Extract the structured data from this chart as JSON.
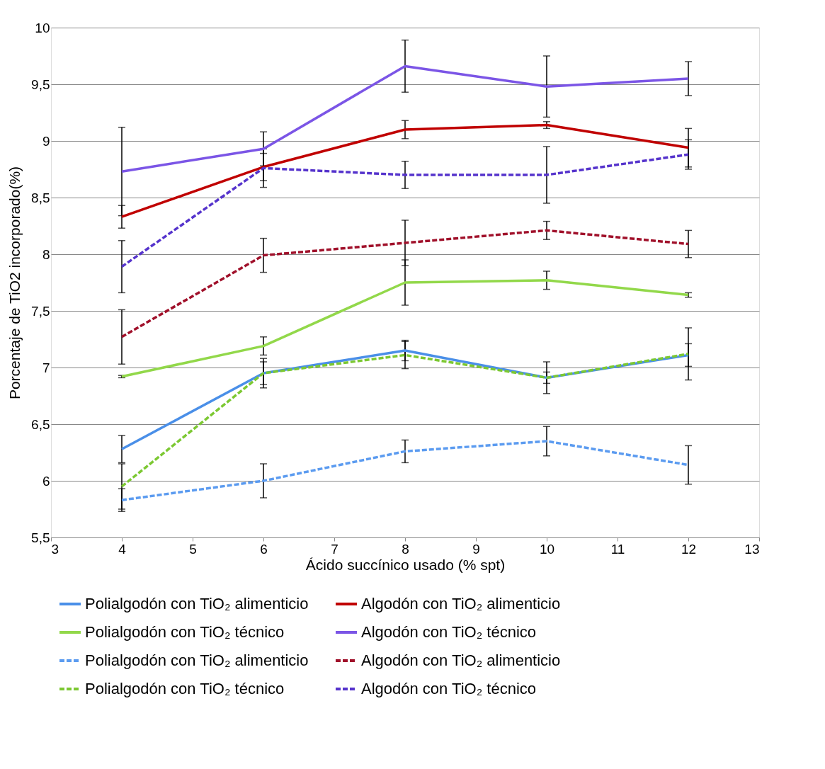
{
  "chart_data": {
    "type": "line",
    "xlabel": "Ácido succínico usado (% spt)",
    "ylabel": "Porcentaje de  TiO2 incorporado(%)",
    "x": [
      4,
      6,
      8,
      10,
      12
    ],
    "xlim": [
      3,
      13
    ],
    "xticks": [
      3,
      4,
      5,
      6,
      7,
      8,
      9,
      10,
      11,
      12,
      13
    ],
    "ylim": [
      5.5,
      10
    ],
    "yticks": [
      {
        "value": 5.5,
        "label": "5,5"
      },
      {
        "value": 6,
        "label": "6"
      },
      {
        "value": 6.5,
        "label": "6,5"
      },
      {
        "value": 7,
        "label": "7"
      },
      {
        "value": 7.5,
        "label": "7,5"
      },
      {
        "value": 8,
        "label": "8"
      },
      {
        "value": 8.5,
        "label": "8,5"
      },
      {
        "value": 9,
        "label": "9"
      },
      {
        "value": 9.5,
        "label": "9,5"
      },
      {
        "value": 10,
        "label": "10"
      }
    ],
    "grid": "y",
    "legend": "bottom",
    "marker": "none",
    "series": [
      {
        "name": "Polialgodón con TiO₂ alimenticio",
        "color": "#4a8fe8",
        "line_style": "solid",
        "values": [
          6.28,
          6.95,
          7.15,
          6.91,
          7.11
        ],
        "errors": [
          0.12,
          0.1,
          0.09,
          0.14,
          0.1
        ]
      },
      {
        "name": "Algodón con TiO₂ alimenticio",
        "color": "#c00000",
        "line_style": "solid",
        "values": [
          8.33,
          8.77,
          9.1,
          9.14,
          8.94
        ],
        "errors": [
          0.1,
          0.12,
          0.08,
          0.03,
          0.17
        ]
      },
      {
        "name": "Polialgodón con TiO₂ técnico",
        "color": "#92d84a",
        "line_style": "solid",
        "values": [
          6.92,
          7.19,
          7.75,
          7.77,
          7.64
        ],
        "errors": [
          0.01,
          0.08,
          0.2,
          0.08,
          0.02
        ]
      },
      {
        "name": "Algodón con TiO₂ técnico",
        "color": "#7b55e6",
        "line_style": "solid",
        "values": [
          8.73,
          8.93,
          9.66,
          9.48,
          9.55
        ],
        "errors": [
          0.39,
          0.15,
          0.23,
          0.27,
          0.15
        ]
      },
      {
        "name": "Polialgodón con TiO₂ alimenticio",
        "color": "#5b9bf0",
        "line_style": "dashed",
        "values": [
          5.83,
          6.0,
          6.26,
          6.35,
          6.14
        ],
        "errors": [
          0.1,
          0.15,
          0.1,
          0.13,
          0.17
        ]
      },
      {
        "name": "Algodón con TiO₂ alimenticio",
        "color": "#a0102a",
        "line_style": "dashed",
        "values": [
          7.27,
          7.99,
          8.1,
          8.21,
          8.09
        ],
        "errors": [
          0.24,
          0.15,
          0.2,
          0.08,
          0.12
        ]
      },
      {
        "name": "Polialgodón con TiO₂ técnico",
        "color": "#7cc832",
        "line_style": "dashed",
        "values": [
          5.95,
          6.95,
          7.11,
          6.91,
          7.12
        ],
        "errors": [
          0.2,
          0.13,
          0.12,
          0.05,
          0.23
        ]
      },
      {
        "name": "Algodón con TiO₂ técnico",
        "color": "#5533cc",
        "line_style": "dashed",
        "values": [
          7.89,
          8.76,
          8.7,
          8.7,
          8.88
        ],
        "errors": [
          0.23,
          0.17,
          0.12,
          0.25,
          0.13
        ]
      }
    ]
  }
}
